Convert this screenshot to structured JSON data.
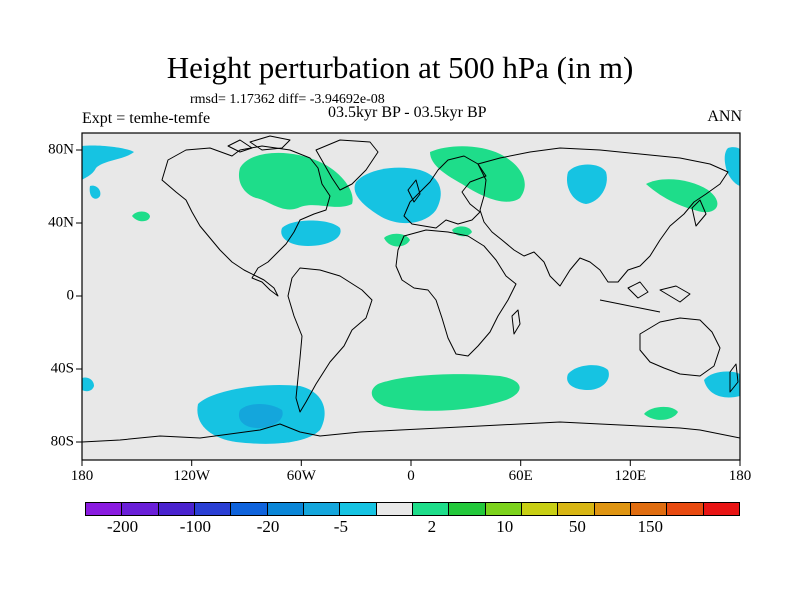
{
  "figure": {
    "title": "Height perturbation at 500 hPa (in m)",
    "stats": "rmsd= 1.17362 diff= -3.94692e-08",
    "experiment": "Expt = temhe-temfe",
    "period": "03.5kyr BP - 03.5kyr BP",
    "season": "ANN"
  },
  "axes": {
    "lon_ticks": [
      "180",
      "120W",
      "60W",
      "0",
      "60E",
      "120E",
      "180"
    ],
    "lat_ticks": [
      "80N",
      "40N",
      "0",
      "40S",
      "80S"
    ]
  },
  "colorbar": {
    "colors": [
      "#8a1be0",
      "#6a1fd8",
      "#4a23cf",
      "#2a3fd4",
      "#0f63dc",
      "#0a86d7",
      "#14a6dc",
      "#16c3e2",
      "#e8e8e8",
      "#1edd8a",
      "#23c83b",
      "#7cd21c",
      "#c8cf14",
      "#d8b614",
      "#df9512",
      "#e06d10",
      "#e84a10",
      "#e81414"
    ],
    "labels": [
      "-200",
      "-100",
      "-20",
      "-5",
      "2",
      "10",
      "50",
      "150"
    ]
  },
  "colors": {
    "background": "#e8e8e8",
    "negative_light": "#16c3e2",
    "negative_mid": "#14a6dc",
    "positive_light": "#1edd8a"
  }
}
